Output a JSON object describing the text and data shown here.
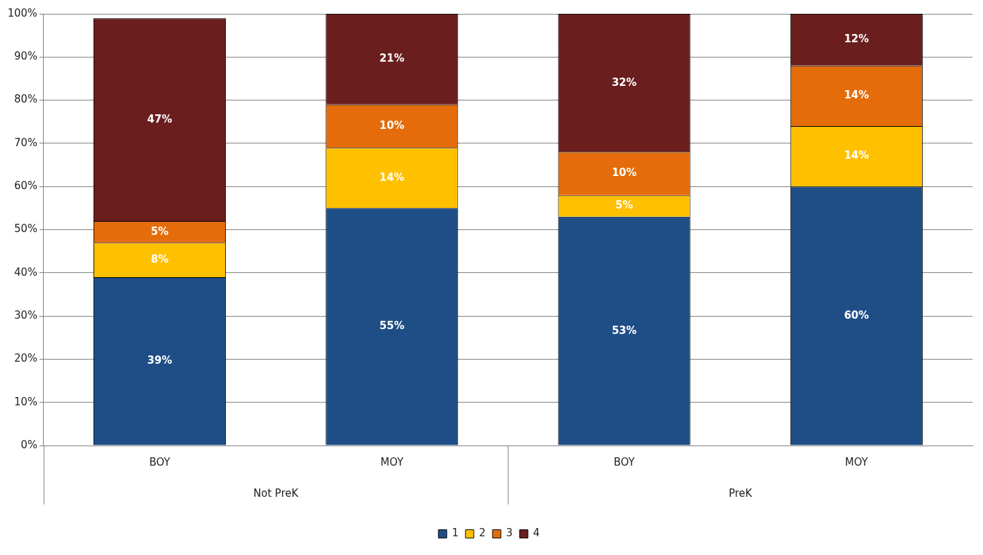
{
  "chart_data": {
    "type": "bar",
    "stacked": true,
    "categories": [
      "BOY",
      "MOY",
      "BOY",
      "MOY"
    ],
    "annotations": [
      "Not PreK",
      "PreK"
    ],
    "series": [
      {
        "name": "1",
        "color": "#1f4e86",
        "values": [
          39,
          55,
          53,
          60
        ],
        "value_labels": [
          "39%",
          "55%",
          "53%",
          "60%"
        ]
      },
      {
        "name": "2",
        "color": "#ffc000",
        "values": [
          8,
          14,
          5,
          14
        ],
        "value_labels": [
          "8%",
          "14%",
          "5%",
          "14%"
        ]
      },
      {
        "name": "3",
        "color": "#e46c0a",
        "values": [
          5,
          10,
          10,
          14
        ],
        "value_labels": [
          "5%",
          "10%",
          "10%",
          "14%"
        ]
      },
      {
        "name": "4",
        "color": "#6b1e1e",
        "values": [
          47,
          21,
          32,
          12
        ],
        "value_labels": [
          "47%",
          "21%",
          "32%",
          "12%"
        ]
      }
    ],
    "ylim": [
      0,
      100
    ],
    "yticks": [
      {
        "value": 0,
        "label": "0%"
      },
      {
        "value": 10,
        "label": "10%"
      },
      {
        "value": 20,
        "label": "20%"
      },
      {
        "value": 30,
        "label": "30%"
      },
      {
        "value": 40,
        "label": "40%"
      },
      {
        "value": 50,
        "label": "50%"
      },
      {
        "value": 60,
        "label": "60%"
      },
      {
        "value": 70,
        "label": "70%"
      },
      {
        "value": 80,
        "label": "80%"
      },
      {
        "value": 90,
        "label": "90%"
      },
      {
        "value": 100,
        "label": "100%"
      }
    ],
    "grid": "y",
    "legend": "bottom"
  }
}
